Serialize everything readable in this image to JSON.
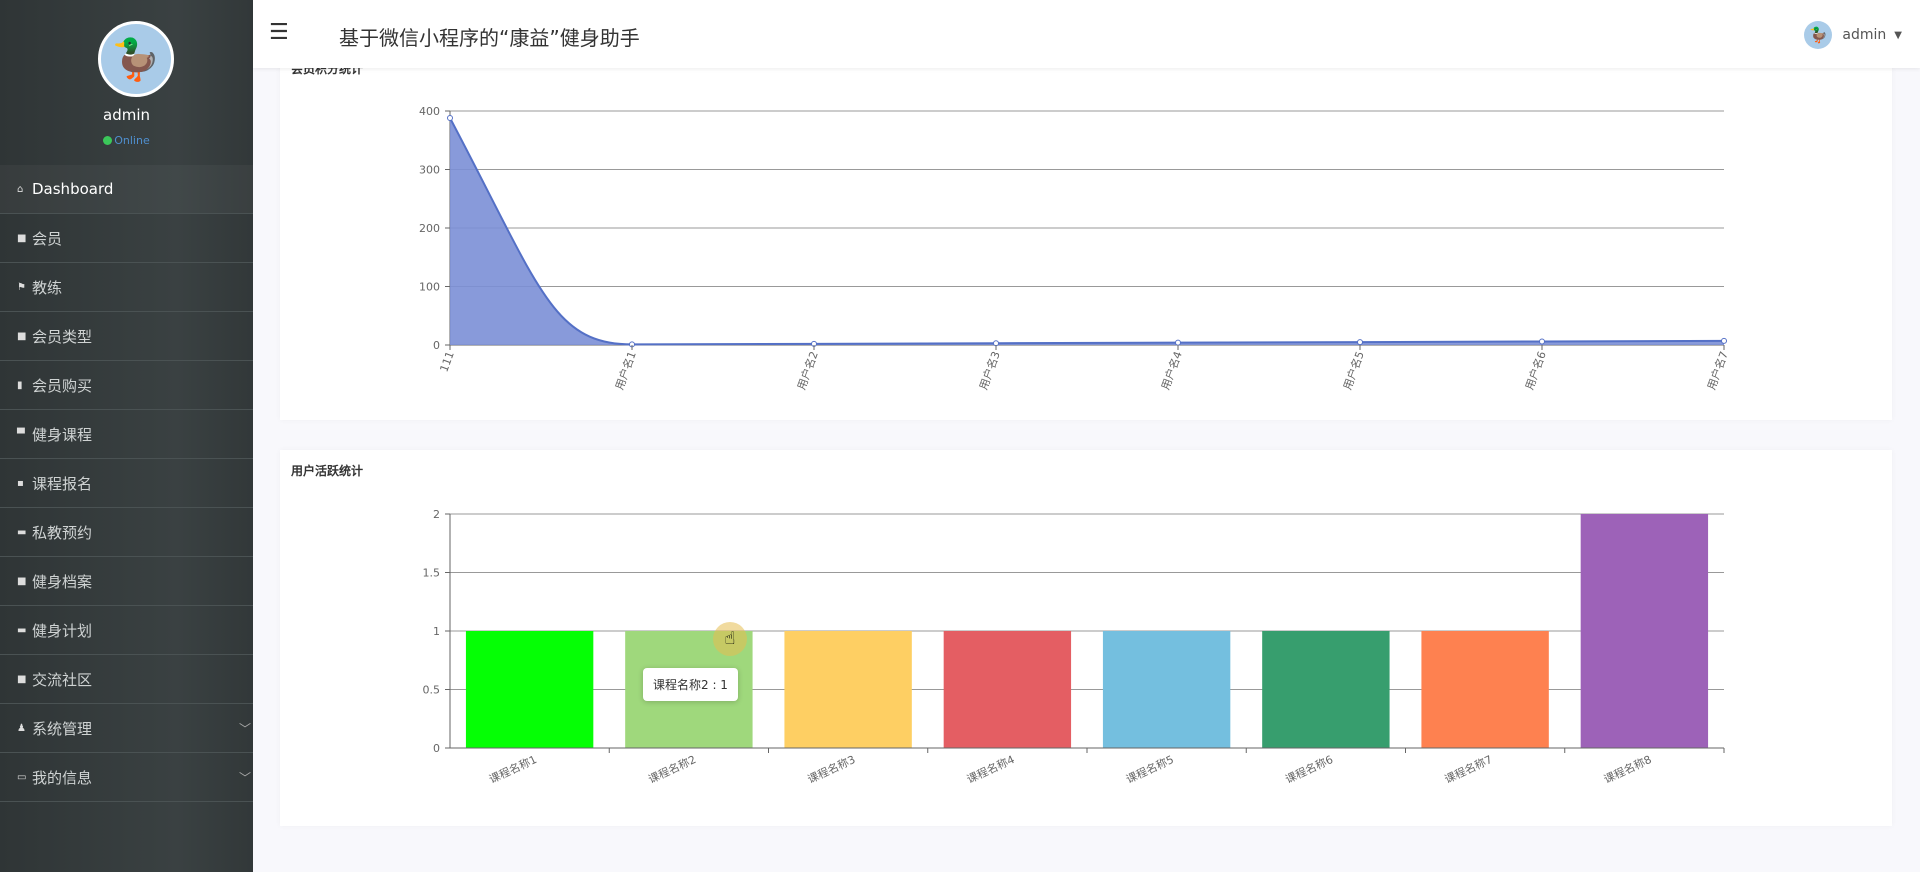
{
  "sidebar": {
    "username": "admin",
    "status": "Online",
    "items": [
      {
        "label": "Dashboard",
        "icon": "home-icon",
        "glyph": "⌂"
      },
      {
        "label": "会员",
        "icon": "grid-icon",
        "glyph": "■"
      },
      {
        "label": "教练",
        "icon": "flag-icon",
        "glyph": "⚑"
      },
      {
        "label": "会员类型",
        "icon": "grid-icon",
        "glyph": "■"
      },
      {
        "label": "会员购买",
        "icon": "clipboard-icon",
        "glyph": "▮"
      },
      {
        "label": "健身课程",
        "icon": "monitor-icon",
        "glyph": "▀"
      },
      {
        "label": "课程报名",
        "icon": "chart-icon",
        "glyph": "▪"
      },
      {
        "label": "私教预约",
        "icon": "briefcase-icon",
        "glyph": "▬"
      },
      {
        "label": "健身档案",
        "icon": "grid-icon",
        "glyph": "■"
      },
      {
        "label": "健身计划",
        "icon": "briefcase-icon",
        "glyph": "▬"
      },
      {
        "label": "交流社区",
        "icon": "grid-icon",
        "glyph": "■"
      },
      {
        "label": "系统管理",
        "icon": "user-icon",
        "glyph": "♟",
        "expandable": true
      },
      {
        "label": "我的信息",
        "icon": "card-icon",
        "glyph": "▭",
        "expandable": true
      }
    ]
  },
  "header": {
    "title": "基于微信小程序的“康益”健身助手",
    "menu_glyph": "☰",
    "user": "admin"
  },
  "chart_data": [
    {
      "type": "area",
      "title": "会员积分统计",
      "categories": [
        "111",
        "用户名1",
        "用户名2",
        "用户名3",
        "用户名4",
        "用户名5",
        "用户名6",
        "用户名7"
      ],
      "values": [
        388,
        1,
        2,
        3,
        4,
        5,
        6,
        7
      ],
      "ylim": [
        0,
        400
      ],
      "yticks": [
        "0",
        "100",
        "200",
        "300",
        "400"
      ],
      "color": "#7b8fd6",
      "grid": true
    },
    {
      "type": "bar",
      "title": "用户活跃统计",
      "categories": [
        "课程名称1",
        "课程名称2",
        "课程名称3",
        "课程名称4",
        "课程名称5",
        "课程名称6",
        "课程名称7",
        "课程名称8"
      ],
      "values": [
        1,
        1,
        1,
        1,
        1,
        1,
        1,
        2
      ],
      "ylim": [
        0,
        2
      ],
      "yticks": [
        "0",
        "0.5",
        "1",
        "1.5",
        "2"
      ],
      "colors": [
        "#05ff05",
        "#9fd87c",
        "#fecf63",
        "#e45e63",
        "#74bfdf",
        "#379e6e",
        "#fe8150",
        "#9d62b8"
      ],
      "grid": true,
      "tooltip": "课程名称2 : 1"
    }
  ]
}
